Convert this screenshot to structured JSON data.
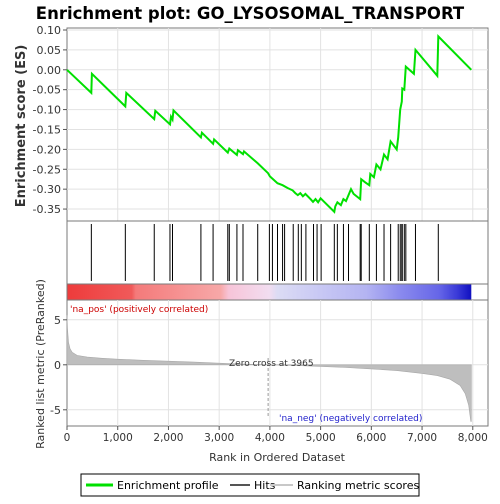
{
  "chart_data": {
    "type": "line",
    "title": "Enrichment plot: GO_LYSOSOMAL_TRANSPORT",
    "es_panel": {
      "ylabel": "Enrichment score (ES)",
      "ylim": [
        -0.38,
        0.105
      ],
      "yticks": [
        0.1,
        0.05,
        0.0,
        -0.05,
        -0.1,
        -0.15,
        -0.2,
        -0.25,
        -0.3,
        -0.35
      ],
      "ytick_labels": [
        "0.10",
        "0.05",
        "0.00",
        "-0.05",
        "-0.10",
        "-0.15",
        "-0.20",
        "-0.25",
        "-0.30",
        "-0.35"
      ],
      "profile": [
        [
          0,
          0.0
        ],
        [
          480,
          -0.058
        ],
        [
          490,
          -0.01
        ],
        [
          1150,
          -0.092
        ],
        [
          1170,
          -0.058
        ],
        [
          1720,
          -0.124
        ],
        [
          1740,
          -0.103
        ],
        [
          2030,
          -0.137
        ],
        [
          2050,
          -0.118
        ],
        [
          2080,
          -0.125
        ],
        [
          2100,
          -0.102
        ],
        [
          2640,
          -0.17
        ],
        [
          2660,
          -0.158
        ],
        [
          2880,
          -0.186
        ],
        [
          2900,
          -0.175
        ],
        [
          3170,
          -0.208
        ],
        [
          3200,
          -0.198
        ],
        [
          3350,
          -0.214
        ],
        [
          3370,
          -0.202
        ],
        [
          3470,
          -0.212
        ],
        [
          3490,
          -0.205
        ],
        [
          3760,
          -0.235
        ],
        [
          3965,
          -0.26
        ],
        [
          4000,
          -0.268
        ],
        [
          4150,
          -0.285
        ],
        [
          4250,
          -0.29
        ],
        [
          4350,
          -0.297
        ],
        [
          4450,
          -0.303
        ],
        [
          4500,
          -0.31
        ],
        [
          4550,
          -0.315
        ],
        [
          4600,
          -0.31
        ],
        [
          4650,
          -0.318
        ],
        [
          4700,
          -0.312
        ],
        [
          4800,
          -0.325
        ],
        [
          4850,
          -0.332
        ],
        [
          4900,
          -0.325
        ],
        [
          4950,
          -0.333
        ],
        [
          5000,
          -0.323
        ],
        [
          5270,
          -0.357
        ],
        [
          5290,
          -0.343
        ],
        [
          5330,
          -0.333
        ],
        [
          5400,
          -0.34
        ],
        [
          5450,
          -0.325
        ],
        [
          5500,
          -0.33
        ],
        [
          5550,
          -0.315
        ],
        [
          5600,
          -0.3
        ],
        [
          5650,
          -0.312
        ],
        [
          5780,
          -0.325
        ],
        [
          5800,
          -0.275
        ],
        [
          5880,
          -0.283
        ],
        [
          5960,
          -0.29
        ],
        [
          5980,
          -0.262
        ],
        [
          6050,
          -0.27
        ],
        [
          6100,
          -0.238
        ],
        [
          6180,
          -0.25
        ],
        [
          6250,
          -0.213
        ],
        [
          6320,
          -0.225
        ],
        [
          6380,
          -0.18
        ],
        [
          6500,
          -0.2
        ],
        [
          6530,
          -0.17
        ],
        [
          6570,
          -0.1
        ],
        [
          6600,
          -0.08
        ],
        [
          6610,
          -0.047
        ],
        [
          6650,
          -0.05
        ],
        [
          6680,
          0.008
        ],
        [
          6840,
          -0.01
        ],
        [
          6870,
          0.05
        ],
        [
          7300,
          -0.015
        ],
        [
          7320,
          0.084
        ],
        [
          7970,
          0.0
        ]
      ]
    },
    "hits_panel": {
      "hit_positions": [
        480,
        1150,
        1720,
        2030,
        2080,
        2640,
        2880,
        3170,
        3200,
        3350,
        3470,
        3760,
        3990,
        4050,
        4150,
        4250,
        4290,
        4460,
        4560,
        4620,
        4710,
        4860,
        4930,
        5010,
        5270,
        5330,
        5450,
        5550,
        5780,
        5800,
        5960,
        6100,
        6250,
        6380,
        6530,
        6570,
        6600,
        6610,
        6650,
        6680,
        6870,
        7320
      ]
    },
    "ranked_panel": {
      "ylabel": "Ranked list metric (PreRanked)",
      "ylim": [
        -6.8,
        7.2
      ],
      "yticks": [
        5,
        0,
        -5
      ],
      "ytick_labels": [
        "5",
        "0",
        "-5"
      ],
      "pos_label": "'na_pos' (positively correlated)",
      "neg_label": "'na_neg' (negatively correlated)",
      "zero_cross_label": "Zero cross at 3965",
      "zero_cross": 3965,
      "metric_curve": [
        [
          0,
          5.5
        ],
        [
          10,
          4.0
        ],
        [
          30,
          2.5
        ],
        [
          60,
          1.8
        ],
        [
          100,
          1.4
        ],
        [
          200,
          1.05
        ],
        [
          400,
          0.85
        ],
        [
          700,
          0.72
        ],
        [
          1000,
          0.62
        ],
        [
          1500,
          0.5
        ],
        [
          2000,
          0.4
        ],
        [
          2500,
          0.3
        ],
        [
          3000,
          0.18
        ],
        [
          3500,
          0.07
        ],
        [
          3965,
          0.0
        ],
        [
          4500,
          -0.08
        ],
        [
          5000,
          -0.18
        ],
        [
          5500,
          -0.3
        ],
        [
          6000,
          -0.45
        ],
        [
          6500,
          -0.65
        ],
        [
          7000,
          -0.95
        ],
        [
          7300,
          -1.2
        ],
        [
          7550,
          -1.6
        ],
        [
          7750,
          -2.3
        ],
        [
          7850,
          -3.2
        ],
        [
          7920,
          -4.5
        ],
        [
          7960,
          -6.3
        ],
        [
          7970,
          -6.3
        ]
      ]
    },
    "xaxis": {
      "xlabel": "Rank in Ordered Dataset",
      "xlim": [
        0,
        8300
      ],
      "xticks": [
        0,
        1000,
        2000,
        3000,
        4000,
        5000,
        6000,
        7000,
        8000
      ],
      "xtick_labels": [
        "0",
        "1,000",
        "2,000",
        "3,000",
        "4,000",
        "5,000",
        "6,000",
        "7,000",
        "8,000"
      ],
      "n_genes": 7970
    },
    "legend": {
      "placement": "bottom",
      "entries": [
        {
          "label": "Enrichment profile",
          "color": "#00dd00"
        },
        {
          "label": "Hits",
          "color": "#555555"
        },
        {
          "label": "Ranking metric scores",
          "color": "#c8c8c8"
        }
      ]
    },
    "colors": {
      "profile": "#00e000",
      "hit": "#000000",
      "metric_fill": "#bebebe",
      "frame": "#7a7a7a",
      "pos_text": "#cc0000",
      "neg_text": "#2222cc"
    }
  }
}
